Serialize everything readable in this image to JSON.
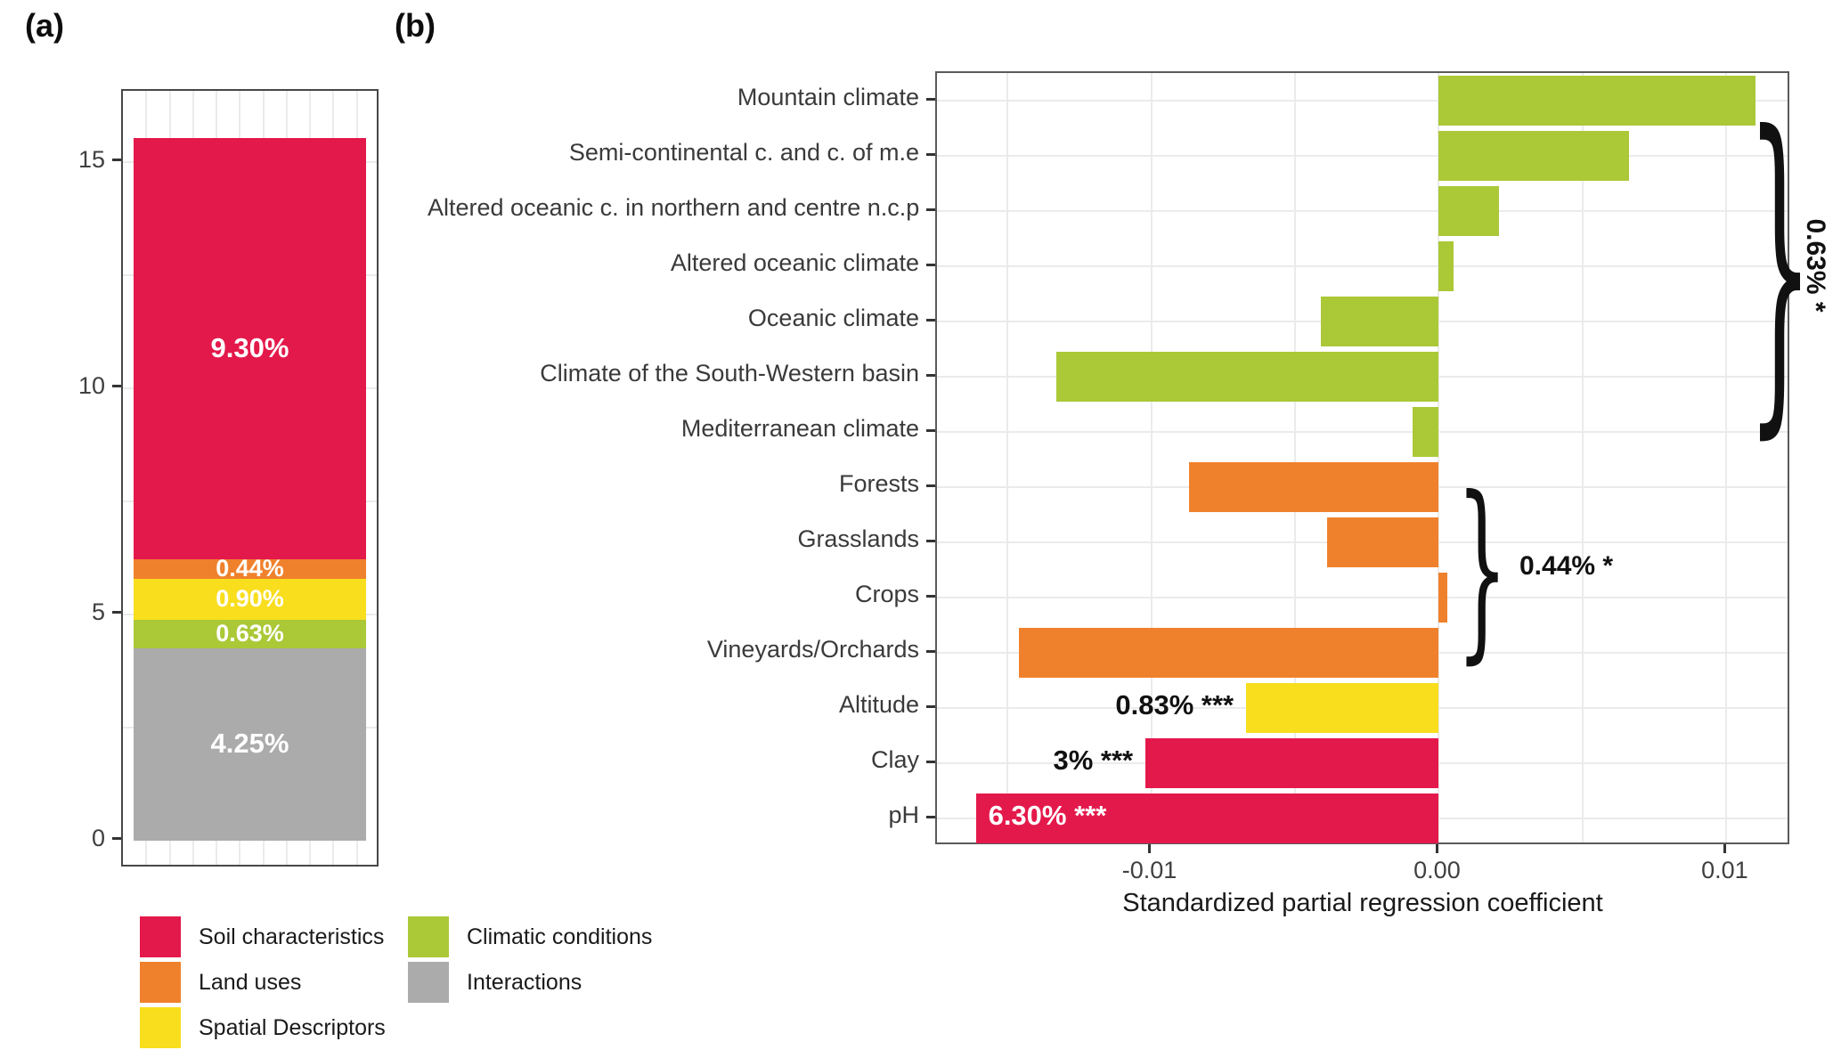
{
  "figure": {
    "panel_a_tag": "(a)",
    "panel_b_tag": "(b)"
  },
  "colors": {
    "soil": "#E4194B",
    "land": "#F0812C",
    "spatial": "#F8DE1D",
    "climatic": "#ABC837",
    "interactions": "#ABABAB",
    "grid": "#EBEBEB",
    "tick": "#333333",
    "text": "#3A3A3A"
  },
  "legend": {
    "items": [
      {
        "label": "Soil characteristics",
        "color_key": "soil",
        "column": 0,
        "row": 0
      },
      {
        "label": "Land uses",
        "color_key": "land",
        "column": 0,
        "row": 1
      },
      {
        "label": "Spatial Descriptors",
        "color_key": "spatial",
        "column": 0,
        "row": 2
      },
      {
        "label": "Climatic conditions",
        "color_key": "climatic",
        "column": 1,
        "row": 0
      },
      {
        "label": "Interactions",
        "color_key": "interactions",
        "column": 1,
        "row": 1
      }
    ]
  },
  "chart_data": [
    {
      "id": "panel_a",
      "type": "bar",
      "subtype": "stacked-vertical",
      "title": "",
      "xlabel": "",
      "ylabel": "",
      "ylim": [
        -0.62,
        16.57
      ],
      "yticks": [
        0,
        5,
        10,
        15
      ],
      "grid": true,
      "total": 15.52,
      "segments_bottom_to_top": [
        {
          "group": "Interactions",
          "value": 4.25,
          "label": "4.25%",
          "color_key": "interactions",
          "label_size": "big"
        },
        {
          "group": "Climatic conditions",
          "value": 0.63,
          "label": "0.63%",
          "color_key": "climatic",
          "label_size": "small"
        },
        {
          "group": "Spatial Descriptors",
          "value": 0.9,
          "label": "0.90%",
          "color_key": "spatial",
          "label_size": "small"
        },
        {
          "group": "Land uses",
          "value": 0.44,
          "label": "0.44%",
          "color_key": "land",
          "label_size": "small"
        },
        {
          "group": "Soil characteristics",
          "value": 9.3,
          "label": "9.30%",
          "color_key": "soil",
          "label_size": "big"
        }
      ]
    },
    {
      "id": "panel_b",
      "type": "bar",
      "subtype": "horizontal",
      "xlabel": "Standardized partial regression coefficient",
      "xlim": [
        -0.01745,
        0.01225
      ],
      "xticks": [
        -0.01,
        0,
        0.01
      ],
      "xtick_labels": [
        "-0.01",
        "0.00",
        "0.01"
      ],
      "grid": true,
      "bars": [
        {
          "category": "Mountain climate",
          "value": 0.011,
          "color_key": "climatic"
        },
        {
          "category": "Semi-continental c. and c. of m.e",
          "value": 0.0066,
          "color_key": "climatic"
        },
        {
          "category": "Altered oceanic c. in northern and centre n.c.p",
          "value": 0.0021,
          "color_key": "climatic"
        },
        {
          "category": "Altered oceanic climate",
          "value": 0.0005,
          "color_key": "climatic"
        },
        {
          "category": "Oceanic climate",
          "value": -0.0041,
          "color_key": "climatic"
        },
        {
          "category": "Climate of the South-Western basin",
          "value": -0.0133,
          "color_key": "climatic"
        },
        {
          "category": "Mediterranean climate",
          "value": -0.0009,
          "color_key": "climatic"
        },
        {
          "category": "Forests",
          "value": -0.0087,
          "color_key": "land"
        },
        {
          "category": "Grasslands",
          "value": -0.0039,
          "color_key": "land"
        },
        {
          "category": "Crops",
          "value": 0.0003,
          "color_key": "land"
        },
        {
          "category": "Vineyards/Orchards",
          "value": -0.0146,
          "color_key": "land"
        },
        {
          "category": "Altitude",
          "value": -0.0067,
          "color_key": "spatial",
          "annotation": "0.83% ***",
          "annotation_style": "outside-left"
        },
        {
          "category": "Clay",
          "value": -0.0102,
          "color_key": "soil",
          "annotation": "3% ***",
          "annotation_style": "outside-left"
        },
        {
          "category": "pH",
          "value": -0.0161,
          "color_key": "soil",
          "annotation": "6.30% ***",
          "annotation_style": "inside-left"
        }
      ],
      "braces": [
        {
          "label": "0.63% *",
          "row_start": 0,
          "row_end": 6,
          "label_rotated": true
        },
        {
          "label": "0.44% *",
          "row_start": 7,
          "row_end": 10,
          "label_rotated": false
        }
      ]
    }
  ]
}
